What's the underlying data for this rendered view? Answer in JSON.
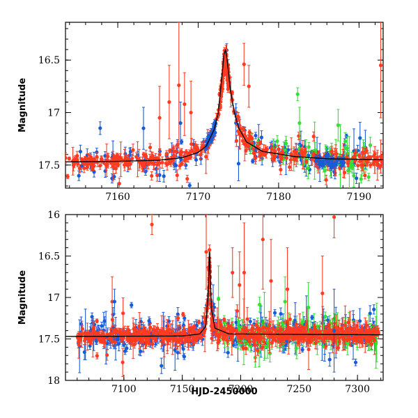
{
  "chart_data": [
    {
      "type": "scatter",
      "panel": "top",
      "title": "",
      "xlabel": "",
      "ylabel": "Magnitude",
      "xlim": [
        7153.5,
        7193
      ],
      "ylim": [
        17.72,
        16.14
      ],
      "y_inverted": true,
      "xticks": [
        7160,
        7170,
        7180,
        7190
      ],
      "yticks": [
        16.5,
        17,
        17.5
      ],
      "ytick_labels": [
        "16.5",
        "17",
        "17.5"
      ],
      "colors": {
        "blue": "#1a5cd6",
        "green": "#33e033",
        "red": "#ff3b22",
        "model": "#000000"
      },
      "model": {
        "name": "microlensing fit",
        "x": [
          7153.5,
          7160,
          7165,
          7168,
          7170,
          7171,
          7172,
          7172.5,
          7173,
          7173.2,
          7173.4,
          7173.6,
          7174,
          7174.5,
          7175,
          7176,
          7178,
          7182,
          7186,
          7193
        ],
        "y": [
          17.47,
          17.465,
          17.455,
          17.43,
          17.38,
          17.32,
          17.16,
          17.0,
          16.62,
          16.45,
          16.4,
          16.5,
          16.78,
          17.0,
          17.14,
          17.28,
          17.37,
          17.42,
          17.44,
          17.45
        ]
      },
      "series": [
        {
          "name": "blue",
          "color": "#1a5cd6",
          "x_range": [
            7155,
            7192.5
          ],
          "baseline": 17.48,
          "scatter": 0.09,
          "err": 0.035
        },
        {
          "name": "green",
          "color": "#33e033",
          "x_range": [
            7176,
            7192
          ],
          "baseline": 17.47,
          "scatter": 0.08,
          "err": 0.06
        },
        {
          "name": "red",
          "color": "#ff3b22",
          "x_range": [
            7153.5,
            7193
          ],
          "baseline": 17.47,
          "scatter": 0.05,
          "err": 0.03
        }
      ],
      "outliers": [
        {
          "x": 7167.6,
          "y": 16.74,
          "err": 0.6,
          "series": "red"
        },
        {
          "x": 7168.3,
          "y": 16.92,
          "err": 0.3,
          "series": "red"
        },
        {
          "x": 7166.4,
          "y": 16.9,
          "err": 0.35,
          "series": "red"
        },
        {
          "x": 7165.2,
          "y": 17.05,
          "err": 0.3,
          "series": "red"
        },
        {
          "x": 7175.7,
          "y": 16.54,
          "err": 0.2,
          "series": "red"
        },
        {
          "x": 7176.3,
          "y": 16.75,
          "err": 0.2,
          "series": "red"
        },
        {
          "x": 7169.1,
          "y": 17.0,
          "err": 0.3,
          "series": "red"
        },
        {
          "x": 7192.7,
          "y": 16.55,
          "err": 0.5,
          "series": "red"
        },
        {
          "x": 7163.2,
          "y": 17.15,
          "err": 0.2,
          "series": "blue"
        },
        {
          "x": 7167.8,
          "y": 17.1,
          "err": 0.2,
          "series": "blue"
        },
        {
          "x": 7182.6,
          "y": 17.1,
          "err": 0.15,
          "series": "green"
        },
        {
          "x": 7187.4,
          "y": 17.12,
          "err": 0.15,
          "series": "green"
        }
      ]
    },
    {
      "type": "scatter",
      "panel": "bottom",
      "title": "",
      "xlabel": "HJD-2450000",
      "ylabel": "Magnitude",
      "xlim": [
        7050,
        7322
      ],
      "ylim": [
        18,
        16
      ],
      "y_inverted": true,
      "xticks": [
        7100,
        7150,
        7200,
        7250,
        7300
      ],
      "yticks": [
        16,
        16.5,
        17,
        17.5,
        18
      ],
      "ytick_labels": [
        "16",
        "16.5",
        "17",
        "17.5",
        "18"
      ],
      "model": {
        "name": "microlensing fit",
        "x": [
          7055,
          7150,
          7165,
          7170,
          7172,
          7173,
          7173.4,
          7174,
          7175,
          7178,
          7190,
          7318
        ],
        "y": [
          17.47,
          17.465,
          17.44,
          17.35,
          17.0,
          16.6,
          16.4,
          16.78,
          17.14,
          17.37,
          17.44,
          17.45
        ]
      },
      "series": [
        {
          "name": "blue",
          "color": "#1a5cd6",
          "x_range": [
            7060,
            7315
          ],
          "baseline": 17.48,
          "scatter": 0.1,
          "err": 0.05
        },
        {
          "name": "green",
          "color": "#33e033",
          "x_range": [
            7180,
            7318
          ],
          "baseline": 17.47,
          "scatter": 0.1,
          "err": 0.08
        },
        {
          "name": "red",
          "color": "#ff3b22",
          "x_range": [
            7060,
            7318
          ],
          "baseline": 17.47,
          "scatter": 0.06,
          "err": 0.04
        }
      ],
      "outliers": [
        {
          "x": 7124,
          "y": 16.12,
          "err": 0.12,
          "series": "red"
        },
        {
          "x": 7280,
          "y": 16.03,
          "err": 0.25,
          "series": "red"
        },
        {
          "x": 7170.5,
          "y": 16.45,
          "err": 0.45,
          "series": "red"
        },
        {
          "x": 7203,
          "y": 16.7,
          "err": 0.6,
          "series": "red"
        },
        {
          "x": 7219,
          "y": 16.3,
          "err": 0.6,
          "series": "red"
        },
        {
          "x": 7199,
          "y": 16.85,
          "err": 0.4,
          "series": "red"
        },
        {
          "x": 7226,
          "y": 16.8,
          "err": 0.5,
          "series": "red"
        },
        {
          "x": 7090,
          "y": 17.05,
          "err": 0.3,
          "series": "red"
        },
        {
          "x": 7240,
          "y": 16.9,
          "err": 0.5,
          "series": "red"
        },
        {
          "x": 7270,
          "y": 16.95,
          "err": 0.45,
          "series": "red"
        },
        {
          "x": 7193,
          "y": 16.7,
          "err": 0.3,
          "series": "red"
        },
        {
          "x": 7181,
          "y": 17.02,
          "err": 0.4,
          "series": "green"
        },
        {
          "x": 7238,
          "y": 17.05,
          "err": 0.3,
          "series": "green"
        },
        {
          "x": 7258,
          "y": 17.12,
          "err": 0.3,
          "series": "green"
        },
        {
          "x": 7092,
          "y": 17.05,
          "err": 0.15,
          "series": "blue"
        },
        {
          "x": 7280,
          "y": 17.4,
          "err": 0.5,
          "series": "blue"
        }
      ]
    }
  ]
}
